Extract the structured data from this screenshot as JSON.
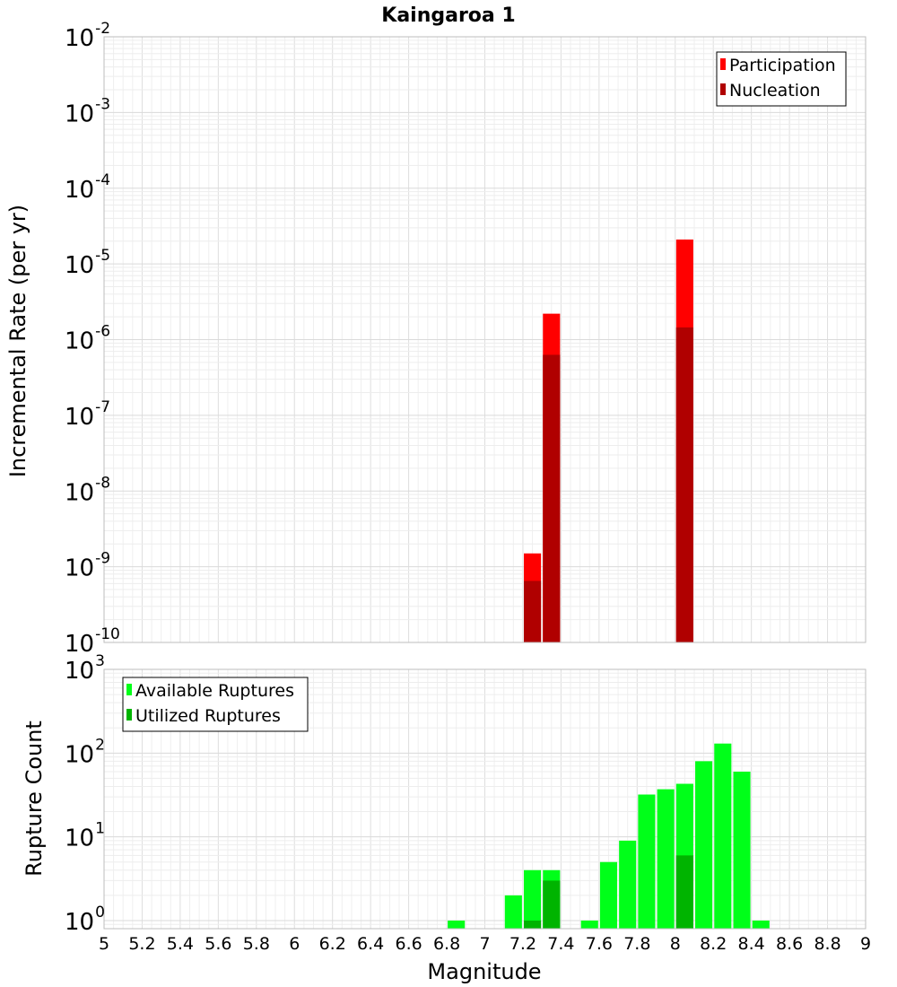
{
  "chart_data": [
    {
      "type": "bar",
      "title": "Kaingaroa 1",
      "xlabel": "",
      "ylabel": "Incremental Rate (per yr)",
      "y_scale": "log",
      "ylim": [
        1e-10,
        0.01
      ],
      "xlim": [
        5,
        9
      ],
      "grid": true,
      "legend_position": "top-right",
      "y_ticks": [
        {
          "base": "10",
          "exp": "-10"
        },
        {
          "base": "10",
          "exp": "-9"
        },
        {
          "base": "10",
          "exp": "-8"
        },
        {
          "base": "10",
          "exp": "-7"
        },
        {
          "base": "10",
          "exp": "-6"
        },
        {
          "base": "10",
          "exp": "-5"
        },
        {
          "base": "10",
          "exp": "-4"
        },
        {
          "base": "10",
          "exp": "-3"
        },
        {
          "base": "10",
          "exp": "-2"
        }
      ],
      "bar_width": 0.09,
      "series": [
        {
          "name": "Participation",
          "color": "#ff0000",
          "points": [
            {
              "x": 7.25,
              "y": 1.5e-09
            },
            {
              "x": 7.35,
              "y": 2.2e-06
            },
            {
              "x": 8.05,
              "y": 2.1e-05
            }
          ]
        },
        {
          "name": "Nucleation",
          "color": "#b00000",
          "points": [
            {
              "x": 7.25,
              "y": 6.5e-10
            },
            {
              "x": 7.35,
              "y": 6.3e-07
            },
            {
              "x": 8.05,
              "y": 1.45e-06
            }
          ]
        }
      ]
    },
    {
      "type": "bar",
      "title": "",
      "xlabel": "Magnitude",
      "ylabel": "Rupture Count",
      "y_scale": "log",
      "ylim": [
        0.8,
        1000
      ],
      "xlim": [
        5,
        9
      ],
      "grid": true,
      "legend_position": "top-left",
      "y_ticks": [
        {
          "value": 1,
          "base": "10",
          "exp": "0"
        },
        {
          "value": 10,
          "base": "10",
          "exp": "1"
        },
        {
          "value": 100,
          "base": "10",
          "exp": "2"
        },
        {
          "value": 1000,
          "base": "10",
          "exp": "3"
        }
      ],
      "x_ticks": [
        "5",
        "5.2",
        "5.4",
        "5.6",
        "5.8",
        "6",
        "6.2",
        "6.4",
        "6.6",
        "6.8",
        "7",
        "7.2",
        "7.4",
        "7.6",
        "7.8",
        "8",
        "8.2",
        "8.4",
        "8.6",
        "8.8",
        "9"
      ],
      "bar_width": 0.09,
      "series": [
        {
          "name": "Available Ruptures",
          "color": "#00ff19",
          "points": [
            {
              "x": 6.85,
              "y": 1
            },
            {
              "x": 7.15,
              "y": 2
            },
            {
              "x": 7.25,
              "y": 4
            },
            {
              "x": 7.35,
              "y": 4
            },
            {
              "x": 7.55,
              "y": 1
            },
            {
              "x": 7.65,
              "y": 5
            },
            {
              "x": 7.75,
              "y": 9
            },
            {
              "x": 7.85,
              "y": 32
            },
            {
              "x": 7.95,
              "y": 37
            },
            {
              "x": 8.05,
              "y": 43
            },
            {
              "x": 8.15,
              "y": 80
            },
            {
              "x": 8.25,
              "y": 130
            },
            {
              "x": 8.35,
              "y": 60
            },
            {
              "x": 8.45,
              "y": 1
            }
          ]
        },
        {
          "name": "Utilized Ruptures",
          "color": "#00b400",
          "points": [
            {
              "x": 7.25,
              "y": 1
            },
            {
              "x": 7.35,
              "y": 3
            },
            {
              "x": 8.05,
              "y": 6
            }
          ]
        }
      ]
    }
  ]
}
